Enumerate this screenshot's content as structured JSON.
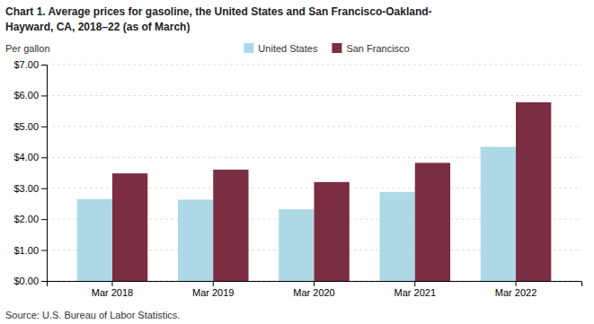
{
  "chart_data": {
    "type": "bar",
    "title": [
      "Chart 1. Average prices for gasoline, the United States and San Francisco-Oakland-",
      "Hayward, CA, 2018–22 (as of March)"
    ],
    "y_label": "Per gallon",
    "source": "Source: U.S. Bureau of Labor Statistics.",
    "categories": [
      "Mar 2018",
      "Mar 2019",
      "Mar 2020",
      "Mar 2021",
      "Mar 2022"
    ],
    "series": [
      {
        "name": "United States",
        "color": "#add8e6",
        "values": [
          2.65,
          2.63,
          2.32,
          2.88,
          4.34
        ]
      },
      {
        "name": "San Francisco",
        "color": "#7B2D42",
        "values": [
          3.48,
          3.6,
          3.2,
          3.82,
          5.78
        ]
      }
    ],
    "ylim": [
      0,
      7.0
    ],
    "yticks": [
      {
        "value": 0.0,
        "label": "$0.00"
      },
      {
        "value": 1.0,
        "label": "$1.00"
      },
      {
        "value": 2.0,
        "label": "$2.00"
      },
      {
        "value": 3.0,
        "label": "$3.00"
      },
      {
        "value": 4.0,
        "label": "$4.00"
      },
      {
        "value": 5.0,
        "label": "$5.00"
      },
      {
        "value": 6.0,
        "label": "$6.00"
      },
      {
        "value": 7.0,
        "label": "$7.00"
      }
    ],
    "grid": true,
    "legend": "top"
  }
}
